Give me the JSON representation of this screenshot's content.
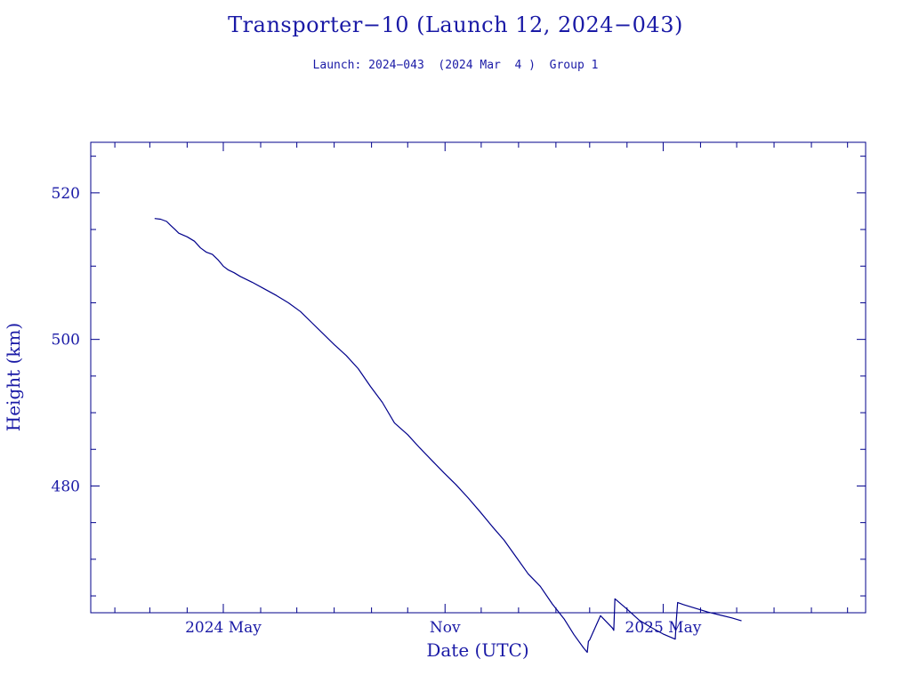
{
  "chart_data": {
    "type": "line",
    "title": "Transporter−10 (Launch 12, 2024−043)",
    "subtitle": "Launch: 2024−043  (2024 Mar  4 )  Group 1",
    "xlabel": "Date (UTC)",
    "ylabel": "Height (km)",
    "grid": false,
    "legend": "none",
    "color": "#00008b",
    "x_tick_labels": [
      {
        "date": "2024-05-01",
        "label": "2024 May"
      },
      {
        "date": "2024-11-01",
        "label": "Nov"
      },
      {
        "date": "2025-05-01",
        "label": "2025 May"
      }
    ],
    "x_minor_ticks": [
      "2024-02-01",
      "2024-03-01",
      "2024-04-01",
      "2024-05-01",
      "2024-06-01",
      "2024-07-01",
      "2024-08-01",
      "2024-09-01",
      "2024-10-01",
      "2024-11-01",
      "2024-12-01",
      "2025-01-01",
      "2025-02-01",
      "2025-03-01",
      "2025-04-01",
      "2025-05-01",
      "2025-06-01",
      "2025-07-01",
      "2025-08-01",
      "2025-09-01",
      "2025-10-01"
    ],
    "xlim": [
      "2024-01-12",
      "2025-10-16"
    ],
    "y_tick_labels": [
      480,
      500,
      520
    ],
    "y_minor_ticks": [
      465,
      470,
      475,
      480,
      485,
      490,
      495,
      500,
      505,
      510,
      515,
      520,
      525
    ],
    "ylim": [
      462.7,
      526.9
    ],
    "series": [
      {
        "x": [
          "2024-03-05",
          "2024-03-10",
          "2024-03-15",
          "2024-03-18",
          "2024-03-22",
          "2024-03-25",
          "2024-04-01",
          "2024-04-07",
          "2024-04-12",
          "2024-04-17",
          "2024-04-22",
          "2024-04-27",
          "2024-05-01",
          "2024-05-05",
          "2024-05-10",
          "2024-05-15",
          "2024-05-25",
          "2024-06-04",
          "2024-06-14",
          "2024-06-24",
          "2024-07-04",
          "2024-07-14",
          "2024-07-22",
          "2024-08-01",
          "2024-08-11",
          "2024-08-21",
          "2024-08-31",
          "2024-09-10",
          "2024-09-20",
          "2024-10-01",
          "2024-10-11",
          "2024-10-21",
          "2024-10-31",
          "2024-11-10",
          "2024-11-20",
          "2024-11-30",
          "2024-12-10",
          "2024-12-20",
          "2024-12-30",
          "2025-01-09",
          "2025-01-19",
          "2025-01-29",
          "2025-02-08",
          "2025-02-16",
          "2025-02-24",
          "2025-02-27",
          "2025-02-28",
          "2025-03-01",
          "2025-03-10",
          "2025-03-20",
          "2025-03-21",
          "2025-03-22",
          "2025-04-01",
          "2025-04-11",
          "2025-04-21",
          "2025-05-01",
          "2025-05-11",
          "2025-05-12",
          "2025-05-13",
          "2025-05-18",
          "2025-05-28",
          "2025-06-07",
          "2025-06-17",
          "2025-06-27",
          "2025-07-05"
        ],
        "values": [
          516.5,
          516.4,
          516.1,
          515.6,
          515.0,
          514.5,
          514.0,
          513.4,
          512.5,
          511.9,
          511.6,
          510.8,
          510.0,
          509.5,
          509.1,
          508.6,
          507.8,
          506.9,
          506.0,
          505.0,
          503.8,
          502.2,
          500.9,
          499.3,
          497.8,
          496.0,
          493.6,
          491.4,
          488.6,
          487.0,
          485.2,
          483.5,
          481.8,
          480.2,
          478.4,
          476.5,
          474.5,
          472.6,
          470.3,
          468.0,
          466.3,
          463.9,
          461.8,
          459.7,
          457.9,
          457.3,
          458.8,
          459.0,
          462.3,
          460.6,
          460.3,
          464.6,
          463.2,
          461.7,
          460.7,
          459.8,
          459.1,
          461.8,
          464.1,
          463.8,
          463.3,
          462.8,
          462.4,
          462.0,
          461.6
        ]
      }
    ]
  }
}
